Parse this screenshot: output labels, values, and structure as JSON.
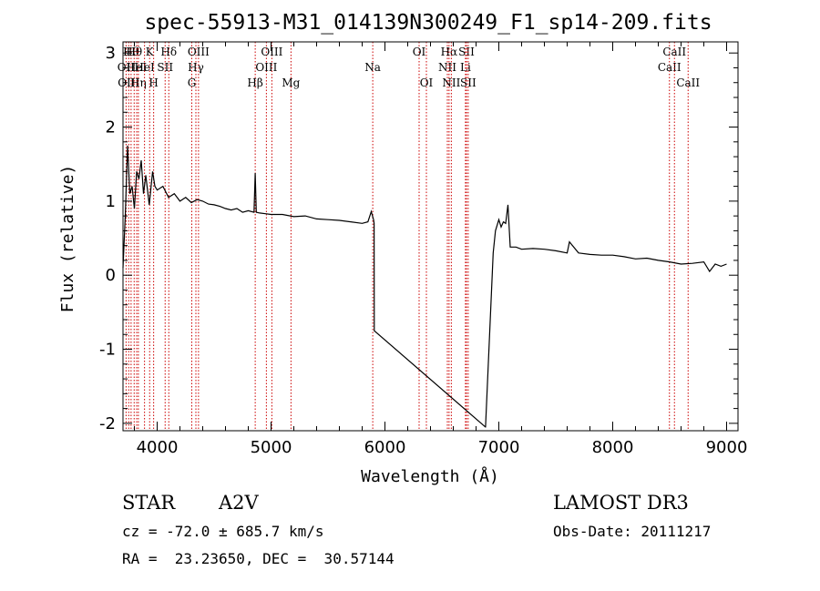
{
  "chart_data": {
    "type": "line",
    "title": "spec-55913-M31_014139N300249_F1_sp14-209.fits",
    "xlabel": "Wavelength (Å)",
    "ylabel": "Flux (relative)",
    "xlim": [
      3700,
      9100
    ],
    "ylim": [
      -2.1,
      3.15
    ],
    "xticks": [
      4000,
      5000,
      6000,
      7000,
      8000,
      9000
    ],
    "yticks": [
      -2,
      -1,
      0,
      1,
      2,
      3
    ],
    "grid": false,
    "series": [
      {
        "x": [
          3700,
          3720,
          3740,
          3760,
          3780,
          3800,
          3820,
          3840,
          3860,
          3880,
          3900,
          3930,
          3960,
          3980,
          4000,
          4050,
          4100,
          4150,
          4200,
          4250,
          4300,
          4350,
          4400,
          4450,
          4500,
          4550,
          4600,
          4650,
          4700,
          4750,
          4800,
          4850,
          4861,
          4870,
          4900,
          4950,
          5000,
          5100,
          5200,
          5300,
          5400,
          5500,
          5600,
          5700,
          5800,
          5850,
          5880,
          5900,
          5905,
          5906,
          6882,
          6883,
          6950,
          6970,
          7000,
          7020,
          7040,
          7060,
          7080,
          7100,
          7150,
          7200,
          7300,
          7400,
          7500,
          7600,
          7620,
          7700,
          7800,
          7900,
          8000,
          8100,
          8200,
          8300,
          8400,
          8500,
          8600,
          8700,
          8800,
          8850,
          8900,
          8950,
          9000
        ],
        "values": [
          0.1,
          0.8,
          1.75,
          1.1,
          1.2,
          0.9,
          1.4,
          1.3,
          1.55,
          1.1,
          1.35,
          0.95,
          1.4,
          1.2,
          1.15,
          1.2,
          1.05,
          1.1,
          1.0,
          1.05,
          0.98,
          1.02,
          1.0,
          0.96,
          0.95,
          0.93,
          0.9,
          0.88,
          0.9,
          0.85,
          0.87,
          0.85,
          1.38,
          0.85,
          0.84,
          0.83,
          0.82,
          0.82,
          0.79,
          0.8,
          0.76,
          0.75,
          0.74,
          0.72,
          0.7,
          0.72,
          0.86,
          0.75,
          0.7,
          -0.75,
          -2.05,
          -2.05,
          0.3,
          0.6,
          0.75,
          0.65,
          0.72,
          0.7,
          0.95,
          0.38,
          0.38,
          0.35,
          0.36,
          0.35,
          0.33,
          0.3,
          0.45,
          0.3,
          0.28,
          0.27,
          0.27,
          0.25,
          0.22,
          0.23,
          0.2,
          0.18,
          0.15,
          0.16,
          0.18,
          0.05,
          0.15,
          0.12,
          0.15
        ]
      }
    ],
    "line_markers": [
      {
        "wl": 3727,
        "label": "OII",
        "row": 1
      },
      {
        "wl": 3750,
        "label": "OIII",
        "row": 2
      },
      {
        "wl": 3771,
        "label": "Hθ",
        "row": 0
      },
      {
        "wl": 3798,
        "label": "Hθ",
        "row": 0
      },
      {
        "wl": 3820,
        "label": "HeI",
        "row": 1
      },
      {
        "wl": 3835,
        "label": "Hη",
        "row": 2
      },
      {
        "wl": 3889,
        "label": "HeI",
        "row": 1
      },
      {
        "wl": 3934,
        "label": "K",
        "row": 0
      },
      {
        "wl": 3969,
        "label": "H",
        "row": 2
      },
      {
        "wl": 4070,
        "label": "SII",
        "row": 1
      },
      {
        "wl": 4102,
        "label": "Hδ",
        "row": 0
      },
      {
        "wl": 4304,
        "label": "G",
        "row": 2
      },
      {
        "wl": 4340,
        "label": "Hγ",
        "row": 1
      },
      {
        "wl": 4363,
        "label": "OIII",
        "row": 0
      },
      {
        "wl": 4861,
        "label": "Hβ",
        "row": 2
      },
      {
        "wl": 4959,
        "label": "OIII",
        "row": 1
      },
      {
        "wl": 5007,
        "label": "OIII",
        "row": 0
      },
      {
        "wl": 5175,
        "label": "Mg",
        "row": 2
      },
      {
        "wl": 5893,
        "label": "Na",
        "row": 1
      },
      {
        "wl": 6300,
        "label": "OI",
        "row": 0
      },
      {
        "wl": 6364,
        "label": "OI",
        "row": 2
      },
      {
        "wl": 6548,
        "label": "NII",
        "row": 1
      },
      {
        "wl": 6563,
        "label": "Hα",
        "row": 0
      },
      {
        "wl": 6583,
        "label": "NII",
        "row": 2
      },
      {
        "wl": 6707,
        "label": "Li",
        "row": 1
      },
      {
        "wl": 6716,
        "label": "SII",
        "row": 0
      },
      {
        "wl": 6731,
        "label": "SII",
        "row": 2
      },
      {
        "wl": 8498,
        "label": "CaII",
        "row": 1
      },
      {
        "wl": 8542,
        "label": "CaII",
        "row": 0
      },
      {
        "wl": 8662,
        "label": "CaII",
        "row": 2
      }
    ],
    "colors": {
      "spectrum": "#000000",
      "line_marker": "#cc0000"
    }
  },
  "info": {
    "class": "STAR",
    "subclass": "A2V",
    "survey": "LAMOST DR3",
    "cz": "cz = -72.0 ± 685.7 km/s",
    "obs_date": "Obs-Date: 20111217",
    "coords": "RA =  23.23650, DEC =  30.57144"
  }
}
